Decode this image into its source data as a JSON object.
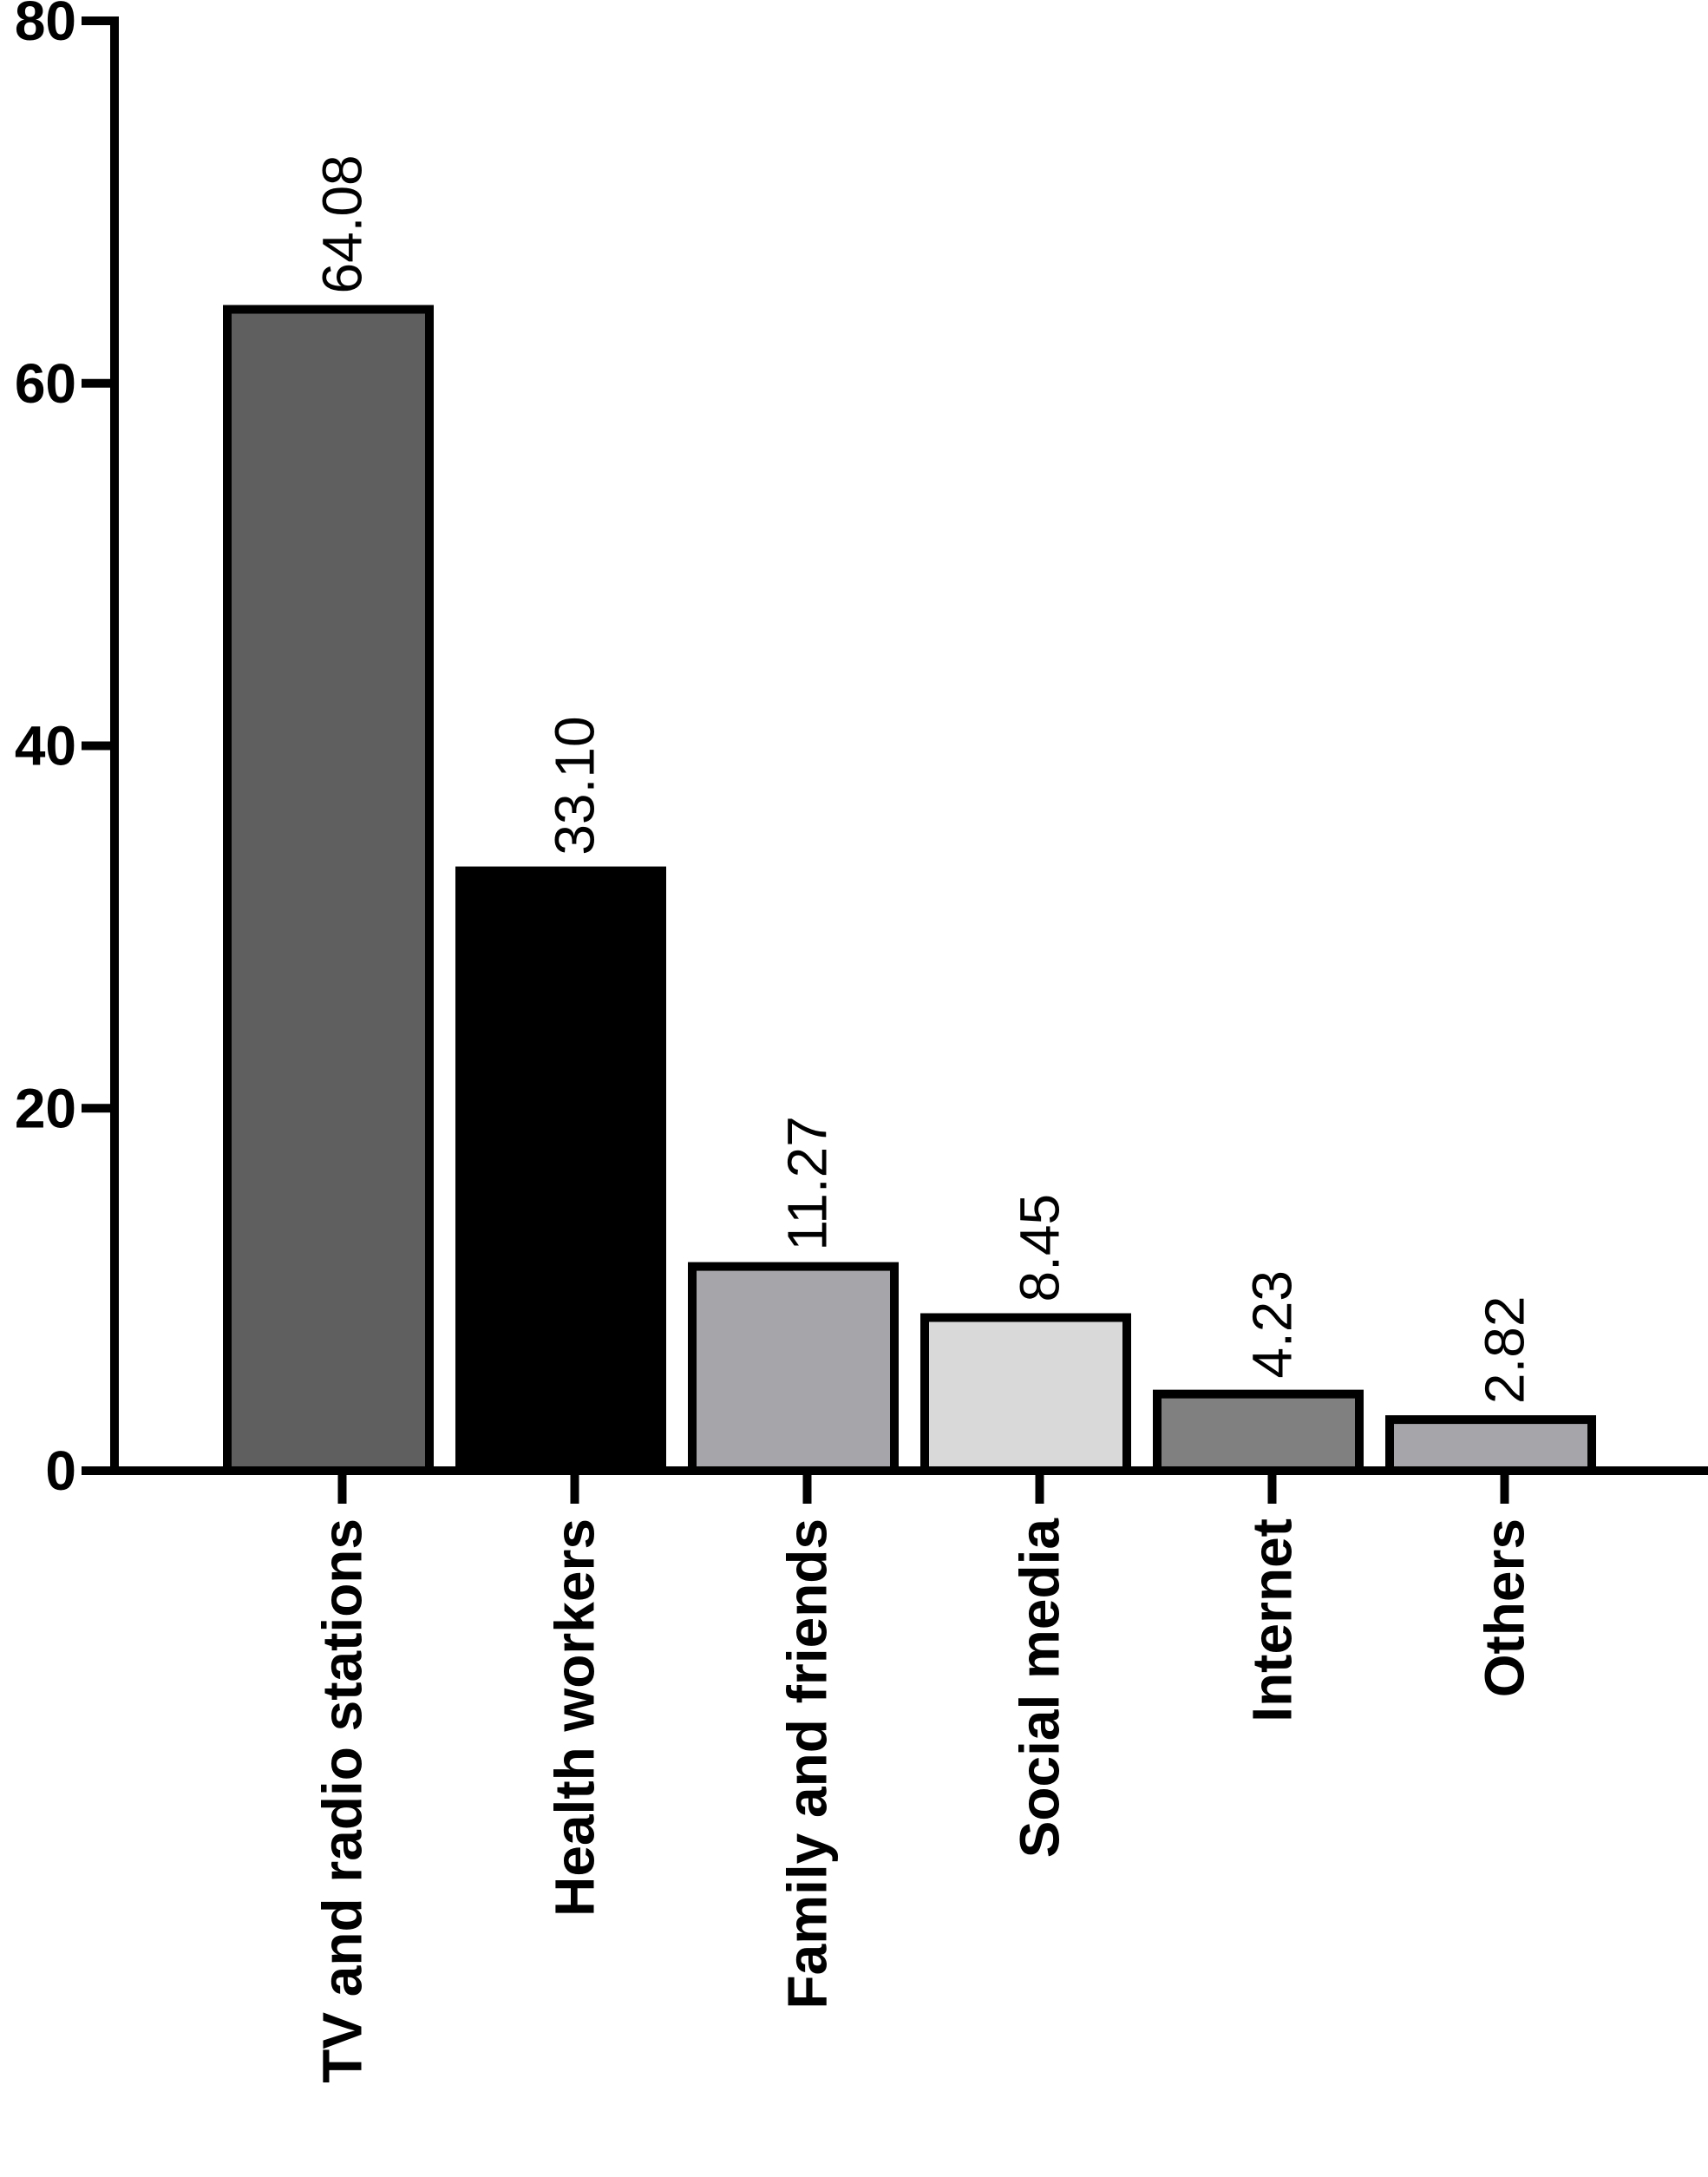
{
  "chart_data": {
    "type": "bar",
    "title": "",
    "xlabel": "",
    "ylabel": "",
    "ylim": [
      0,
      80
    ],
    "yticks": [
      "0",
      "20",
      "40",
      "60",
      "80"
    ],
    "categories": [
      "TV and radio stations",
      "Health workers",
      "Family and friends",
      "Social media",
      "Internet",
      "Others"
    ],
    "values": [
      64.08,
      33.1,
      11.27,
      8.45,
      4.23,
      2.82
    ],
    "value_labels": [
      "64.08",
      "33.10",
      "11.27",
      "8.45",
      "4.23",
      "2.82"
    ],
    "bar_colors": [
      "#5f5f5f",
      "#000000",
      "#a6a6aa",
      "#d9d9d9",
      "#808080",
      "#a6a6aa"
    ],
    "grid": false,
    "legend": "none"
  }
}
